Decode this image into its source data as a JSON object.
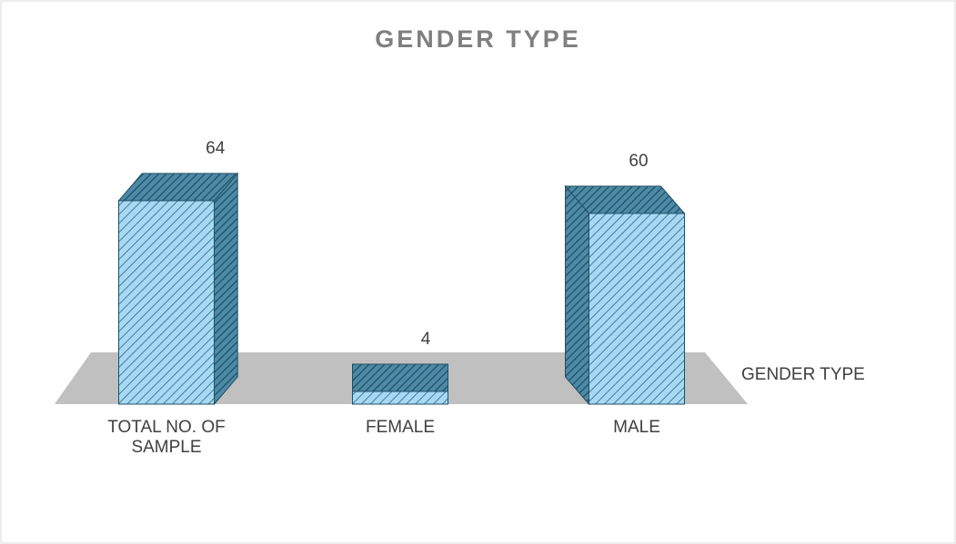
{
  "chart_data": {
    "type": "bar3d",
    "title": "GENDER TYPE",
    "categories": [
      "TOTAL NO. OF SAMPLE",
      "FEMALE",
      "MALE"
    ],
    "series": [
      {
        "name": "GENDER TYPE",
        "color": "#a9d9f2",
        "values": [
          64,
          4,
          60
        ]
      }
    ]
  }
}
